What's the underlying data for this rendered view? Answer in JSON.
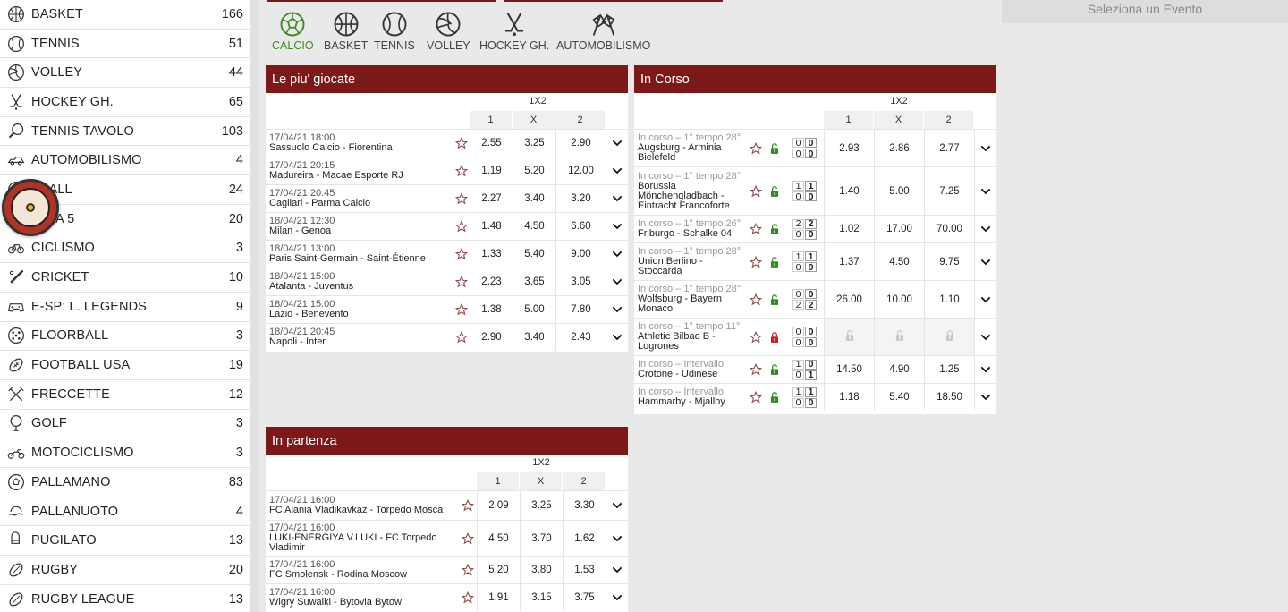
{
  "sidebar": {
    "items": [
      {
        "label": "BASKET",
        "count": "166",
        "icon": "basketball-icon"
      },
      {
        "label": "TENNIS",
        "count": "51",
        "icon": "tennis-ball-icon"
      },
      {
        "label": "VOLLEY",
        "count": "44",
        "icon": "volleyball-icon"
      },
      {
        "label": "HOCKEY GH.",
        "count": "65",
        "icon": "hockey-sticks-icon"
      },
      {
        "label": "TENNIS TAVOLO",
        "count": "103",
        "icon": "ping-pong-icon"
      },
      {
        "label": "AUTOMOBILISMO",
        "count": "4",
        "icon": "racing-car-icon"
      },
      {
        "label": "EBALL",
        "count": "24",
        "icon": "ball-icon"
      },
      {
        "label": "LIO A 5",
        "count": "20",
        "icon": "ball-icon"
      },
      {
        "label": "CICLISMO",
        "count": "3",
        "icon": "bicycle-icon"
      },
      {
        "label": "CRICKET",
        "count": "10",
        "icon": "cricket-bat-icon"
      },
      {
        "label": "E-SP: L. LEGENDS",
        "count": "9",
        "icon": "gamepad-icon"
      },
      {
        "label": "FLOORBALL",
        "count": "3",
        "icon": "floorball-icon"
      },
      {
        "label": "FOOTBALL USA",
        "count": "19",
        "icon": "american-football-icon"
      },
      {
        "label": "FRECCETTE",
        "count": "12",
        "icon": "darts-icon"
      },
      {
        "label": "GOLF",
        "count": "3",
        "icon": "golf-ball-icon"
      },
      {
        "label": "MOTOCICLISMO",
        "count": "3",
        "icon": "motorbike-icon"
      },
      {
        "label": "PALLAMANO",
        "count": "83",
        "icon": "handball-icon"
      },
      {
        "label": "PALLANUOTO",
        "count": "4",
        "icon": "waterpolo-icon"
      },
      {
        "label": "PUGILATO",
        "count": "13",
        "icon": "boxing-icon"
      },
      {
        "label": "RUGBY",
        "count": "20",
        "icon": "rugby-ball-icon"
      },
      {
        "label": "RUGBY LEAGUE",
        "count": "13",
        "icon": "rugby-ball-icon"
      }
    ]
  },
  "tabs": [
    {
      "label": "CALCIO",
      "icon": "soccer-ball-icon",
      "active": true
    },
    {
      "label": "BASKET",
      "icon": "basketball-icon"
    },
    {
      "label": "TENNIS",
      "icon": "tennis-ball-icon"
    },
    {
      "label": "VOLLEY",
      "icon": "volleyball-icon"
    },
    {
      "label": "HOCKEY GH.",
      "icon": "hockey-sticks-icon"
    },
    {
      "label": "AUTOMOBILISMO",
      "icon": "checkered-flags-icon"
    }
  ],
  "right_panel": {
    "placeholder": "Seleziona un Evento"
  },
  "most_played": {
    "title": "Le piu' giocate",
    "market": "1X2",
    "cols": [
      "1",
      "X",
      "2"
    ],
    "rows": [
      {
        "date": "17/04/21 18:00",
        "match": "Sassuolo Calcio - Fiorentina",
        "o1": "2.55",
        "ox": "3.25",
        "o2": "2.90"
      },
      {
        "date": "17/04/21 20:15",
        "match": "Madureira - Macae Esporte RJ",
        "o1": "1.19",
        "ox": "5.20",
        "o2": "12.00"
      },
      {
        "date": "17/04/21 20:45",
        "match": "Cagliari - Parma Calcio",
        "o1": "2.27",
        "ox": "3.40",
        "o2": "3.20"
      },
      {
        "date": "18/04/21 12:30",
        "match": "Milan - Genoa",
        "o1": "1.48",
        "ox": "4.50",
        "o2": "6.60"
      },
      {
        "date": "18/04/21 13:00",
        "match": "Paris Saint-Germain - Saint-Étienne",
        "o1": "1.33",
        "ox": "5.40",
        "o2": "9.00"
      },
      {
        "date": "18/04/21 15:00",
        "match": "Atalanta - Juventus",
        "o1": "2.23",
        "ox": "3.65",
        "o2": "3.05"
      },
      {
        "date": "18/04/21 15:00",
        "match": "Lazio - Benevento",
        "o1": "1.38",
        "ox": "5.00",
        "o2": "7.80"
      },
      {
        "date": "18/04/21 20:45",
        "match": "Napoli - Inter",
        "o1": "2.90",
        "ox": "3.40",
        "o2": "2.43"
      }
    ]
  },
  "live": {
    "title": "In Corso",
    "market": "1X2",
    "cols": [
      "1",
      "X",
      "2"
    ],
    "rows": [
      {
        "status": "In corso – 1° tempo 28°",
        "l1": "Augsburg - Arminia",
        "l2": "Bielefeld",
        "l3": "",
        "s": [
          "0",
          "0",
          "0",
          "0"
        ],
        "o1": "2.93",
        "ox": "2.86",
        "o2": "2.77",
        "locked": false
      },
      {
        "status": "In corso – 1° tempo 28°",
        "l1": "Borussia",
        "l2": "Mönchengladbach -",
        "l3": "Eintracht Francoforte",
        "s": [
          "1",
          "1",
          "0",
          "0"
        ],
        "o1": "1.40",
        "ox": "5.00",
        "o2": "7.25",
        "locked": false
      },
      {
        "status": "In corso – 1° tempo 26°",
        "l1": "Friburgo - Schalke 04",
        "l2": "",
        "l3": "",
        "s": [
          "2",
          "2",
          "0",
          "0"
        ],
        "o1": "1.02",
        "ox": "17.00",
        "o2": "70.00",
        "locked": false
      },
      {
        "status": "In corso – 1° tempo 28°",
        "l1": "Union Berlino -",
        "l2": "Stoccarda",
        "l3": "",
        "s": [
          "1",
          "1",
          "0",
          "0"
        ],
        "o1": "1.37",
        "ox": "4.50",
        "o2": "9.75",
        "locked": false
      },
      {
        "status": "In corso – 1° tempo 28°",
        "l1": "Wolfsburg - Bayern",
        "l2": "Monaco",
        "l3": "",
        "s": [
          "0",
          "0",
          "2",
          "2"
        ],
        "o1": "26.00",
        "ox": "10.00",
        "o2": "1.10",
        "locked": false
      },
      {
        "status": "In corso – 1° tempo 11°",
        "l1": "Athletic Bilbao B -",
        "l2": "Logrones",
        "l3": "",
        "s": [
          "0",
          "0",
          "0",
          "0"
        ],
        "o1": "",
        "ox": "",
        "o2": "",
        "locked": true
      },
      {
        "status": "In corso – Intervallo",
        "l1": "Crotone - Udinese",
        "l2": "",
        "l3": "",
        "s": [
          "1",
          "0",
          "0",
          "1"
        ],
        "o1": "14.50",
        "ox": "4.90",
        "o2": "1.25",
        "locked": false
      },
      {
        "status": "In corso – Intervallo",
        "l1": "Hammarby - Mjallby",
        "l2": "",
        "l3": "",
        "s": [
          "1",
          "1",
          "0",
          "0"
        ],
        "o1": "1.18",
        "ox": "5.40",
        "o2": "18.50",
        "locked": false
      }
    ]
  },
  "starting": {
    "title": "In partenza",
    "market": "1X2",
    "cols": [
      "1",
      "X",
      "2"
    ],
    "rows": [
      {
        "date": "17/04/21 16:00",
        "l1": "FC Alania Vladikavkaz - Torpedo Mosca",
        "l2": "",
        "o1": "2.09",
        "ox": "3.25",
        "o2": "3.30"
      },
      {
        "date": "17/04/21 16:00",
        "l1": "LUKI-ENERGIYA V.LUKI - FC Torpedo",
        "l2": "Vladimir",
        "o1": "4.50",
        "ox": "3.70",
        "o2": "1.62"
      },
      {
        "date": "17/04/21 16:00",
        "l1": "FC Smolensk - Rodina Moscow",
        "l2": "",
        "o1": "5.20",
        "ox": "3.80",
        "o2": "1.53"
      },
      {
        "date": "17/04/21 16:00",
        "l1": "Wigry Suwalki - Bytovia Bytow",
        "l2": "",
        "o1": "1.91",
        "ox": "3.15",
        "o2": "3.75"
      }
    ]
  },
  "colors": {
    "header": "#7c1818",
    "active_tab": "#3a8c1c",
    "star": "#8a4a4a",
    "lock_open": "#2f8a1f",
    "lock_closed": "#c81e1e"
  }
}
